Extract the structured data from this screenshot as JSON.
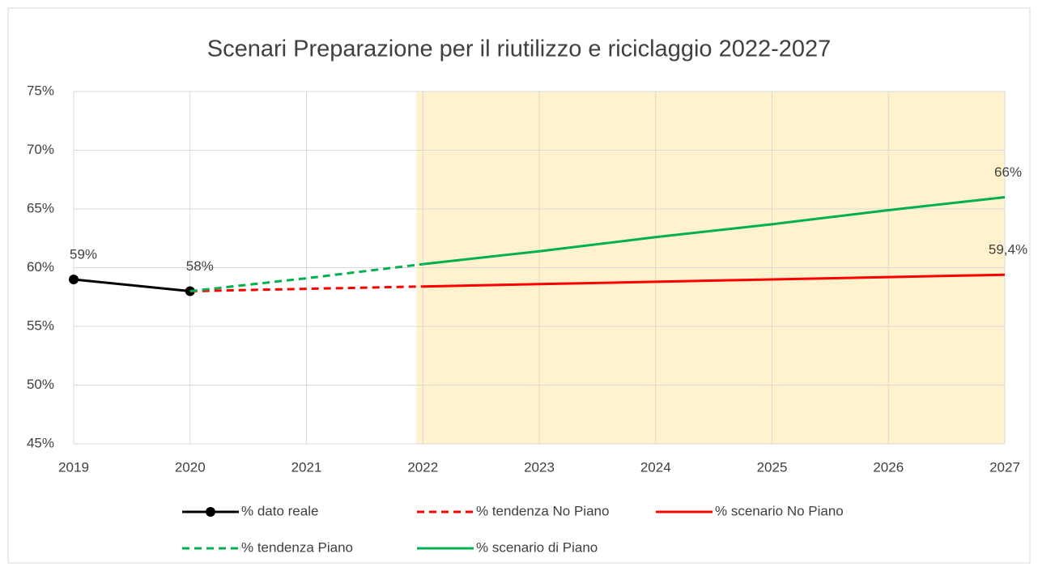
{
  "chart_data": {
    "type": "line",
    "title": "Scenari Preparazione per il riutilizzo e riciclaggio 2022-2027",
    "categories": [
      "2019",
      "2020",
      "2021",
      "2022",
      "2023",
      "2024",
      "2025",
      "2026",
      "2027"
    ],
    "series": [
      {
        "name": "% dato reale",
        "color": "#000000",
        "dash": false,
        "markers": true,
        "values": [
          59,
          58,
          null,
          null,
          null,
          null,
          null,
          null,
          null
        ],
        "value_labels": [
          "59%",
          "58%",
          null,
          null,
          null,
          null,
          null,
          null,
          null
        ]
      },
      {
        "name": "% tendenza No Piano",
        "color": "#ff0000",
        "dash": true,
        "markers": false,
        "values": [
          null,
          58,
          58.2,
          58.4,
          null,
          null,
          null,
          null,
          null
        ]
      },
      {
        "name": "% scenario No Piano",
        "color": "#ff0000",
        "dash": false,
        "markers": false,
        "values": [
          null,
          null,
          null,
          58.4,
          58.6,
          58.8,
          59.0,
          59.2,
          59.4
        ],
        "value_labels": [
          null,
          null,
          null,
          null,
          null,
          null,
          null,
          null,
          "59,4%"
        ]
      },
      {
        "name": "% tendenza Piano",
        "color": "#00b050",
        "dash": true,
        "markers": false,
        "values": [
          null,
          58,
          59.1,
          60.3,
          null,
          null,
          null,
          null,
          null
        ]
      },
      {
        "name": "% scenario di Piano",
        "color": "#00b050",
        "dash": false,
        "markers": false,
        "values": [
          null,
          null,
          null,
          60.3,
          61.4,
          62.6,
          63.7,
          64.9,
          66
        ],
        "value_labels": [
          null,
          null,
          null,
          null,
          null,
          null,
          null,
          null,
          "66%"
        ]
      }
    ],
    "ylim": [
      45,
      75
    ],
    "yticks": [
      {
        "value": 45,
        "label": "45%"
      },
      {
        "value": 50,
        "label": "50%"
      },
      {
        "value": 55,
        "label": "55%"
      },
      {
        "value": 60,
        "label": "60%"
      },
      {
        "value": 65,
        "label": "65%"
      },
      {
        "value": 70,
        "label": "70%"
      },
      {
        "value": 75,
        "label": "75%"
      }
    ],
    "grid": true,
    "shaded_range": [
      "2022",
      "2027"
    ],
    "shade_color": "#fff2cc",
    "legend": "bottom"
  }
}
